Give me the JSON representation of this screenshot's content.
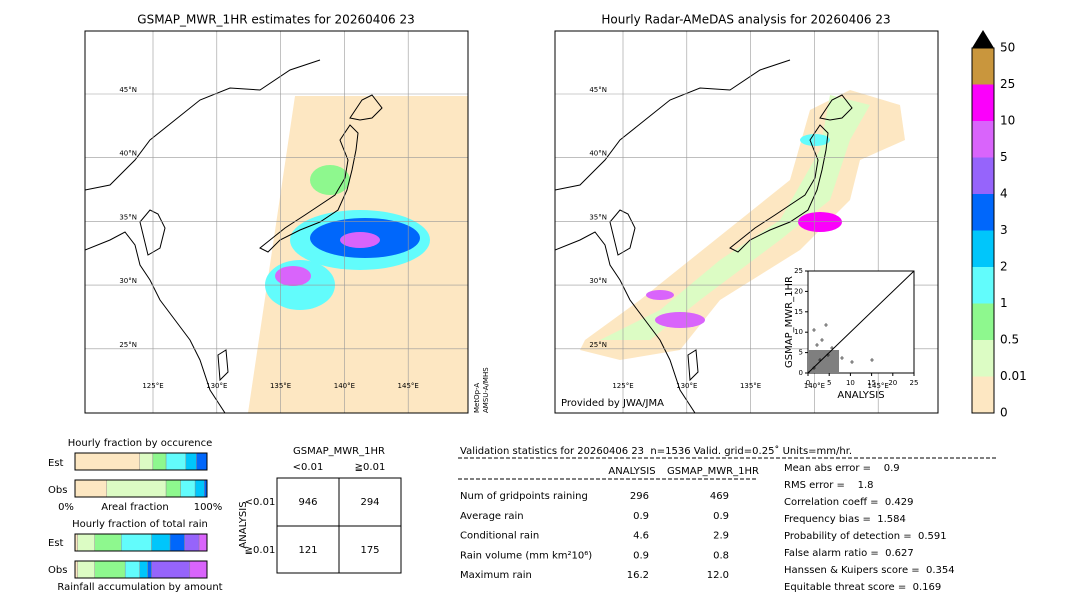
{
  "left_map": {
    "title": "GSMAP_MWR_1HR estimates for 20260406 23",
    "source": [
      "MetOp-A",
      "AMSU-A/MHS"
    ]
  },
  "right_map": {
    "title": "Hourly Radar-AMeDAS analysis for 20260406 23",
    "credit": "Provided by JWA/JMA"
  },
  "lat_labels": [
    "45°N",
    "40°N",
    "35°N",
    "30°N",
    "25°N"
  ],
  "lon_labels": [
    "125°E",
    "130°E",
    "135°E",
    "140°E",
    "145°E"
  ],
  "colorbar": {
    "labels": [
      "0",
      "0.01",
      "0.5",
      "1",
      "2",
      "3",
      "4",
      "5",
      "10",
      "25",
      "50"
    ],
    "colors": [
      "#fde7c2",
      "#dcfcc4",
      "#8ef88e",
      "#62fcfc",
      "#00c6fb",
      "#0067fb",
      "#9664fb",
      "#d964fb",
      "#fb00fb",
      "#c9963d"
    ]
  },
  "scatter": {
    "ylabel": "GSMAP_MWR_1HR",
    "xlabel": "ANALYSIS",
    "ticks": [
      0,
      5,
      10,
      15,
      20,
      25
    ]
  },
  "occurrence": {
    "title": "Hourly fraction by occurence",
    "rows": [
      "Est",
      "Obs"
    ],
    "axis": [
      "0%",
      "Areal fraction",
      "100%"
    ],
    "est": [
      49,
      10,
      10,
      15,
      8,
      8
    ],
    "obs": [
      24,
      45,
      11,
      11,
      7,
      2
    ]
  },
  "total_rain": {
    "title": "Hourly fraction of total rain",
    "rows": [
      "Est",
      "Obs"
    ],
    "caption": "Rainfall accumulation by amount",
    "est": [
      2,
      13,
      20,
      23,
      14,
      11,
      11,
      6
    ],
    "obs": [
      2,
      13,
      23,
      11,
      6,
      3,
      29,
      13
    ]
  },
  "contingency": {
    "title": "GSMAP_MWR_1HR",
    "cols": [
      "<0.01",
      "≧0.01"
    ],
    "row_title": "ANALYSIS",
    "rows": [
      "<0.01",
      "≧0.01"
    ],
    "cells": [
      [
        "946",
        "294"
      ],
      [
        "121",
        "175"
      ]
    ]
  },
  "validation": {
    "header": "Validation statistics for 20260406 23  n=1536 Valid. grid=0.25˚ Units=mm/hr.",
    "columns": [
      "ANALYSIS",
      "GSMAP_MWR_1HR"
    ],
    "rows": [
      [
        "Num of gridpoints raining",
        "296",
        "469"
      ],
      [
        "Average rain",
        "0.9",
        "0.9"
      ],
      [
        "Conditional rain",
        "4.6",
        "2.9"
      ],
      [
        "Rain volume (mm km²10⁶)",
        "0.9",
        "0.8"
      ],
      [
        "Maximum rain",
        "16.2",
        "12.0"
      ]
    ],
    "scores": [
      "Mean abs error =    0.9",
      "RMS error =    1.8",
      "Correlation coeff =  0.429",
      "Frequency bias =  1.584",
      "Probability of detection =  0.591",
      "False alarm ratio =  0.627",
      "Hanssen & Kuipers score =  0.354",
      "Equitable threat score =  0.169"
    ]
  }
}
